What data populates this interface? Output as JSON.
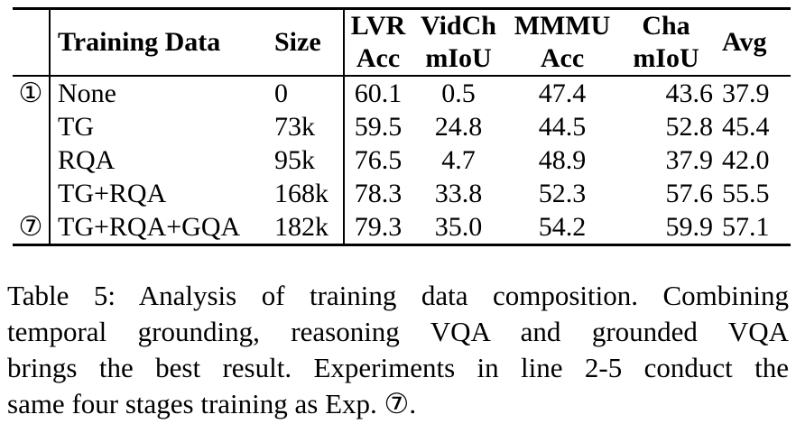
{
  "table": {
    "headers": {
      "training_data": "Training Data",
      "size": "Size",
      "lvr": [
        "LVR",
        "Acc"
      ],
      "vidch": [
        "VidCh",
        "mIoU"
      ],
      "mmmu": [
        "MMMU",
        "Acc"
      ],
      "cha": [
        "Cha",
        "mIoU"
      ],
      "avg": "Avg"
    },
    "rows": [
      {
        "mark": "①",
        "data": "None",
        "size": "0",
        "lvr": "60.1",
        "vidch": "0.5",
        "mmmu": "47.4",
        "cha": "43.6",
        "avg": "37.9"
      },
      {
        "mark": "",
        "data": "TG",
        "size": "73k",
        "lvr": "59.5",
        "vidch": "24.8",
        "mmmu": "44.5",
        "cha": "52.8",
        "avg": "45.4"
      },
      {
        "mark": "",
        "data": "RQA",
        "size": "95k",
        "lvr": "76.5",
        "vidch": "4.7",
        "mmmu": "48.9",
        "cha": "37.9",
        "avg": "42.0"
      },
      {
        "mark": "",
        "data": "TG+RQA",
        "size": "168k",
        "lvr": "78.3",
        "vidch": "33.8",
        "mmmu": "52.3",
        "cha": "57.6",
        "avg": "55.5"
      },
      {
        "mark": "⑦",
        "data": "TG+RQA+GQA",
        "size": "182k",
        "lvr": "79.3",
        "vidch": "35.0",
        "mmmu": "54.2",
        "cha": "59.9",
        "avg": "57.1"
      }
    ]
  },
  "caption": {
    "lines": [
      "Table 5: Analysis of training data composition. Combining",
      "temporal grounding, reasoning VQA and grounded VQA",
      "brings the best result. Experiments in line 2-5 conduct the",
      "same four stages training as Exp. ⑦."
    ]
  }
}
